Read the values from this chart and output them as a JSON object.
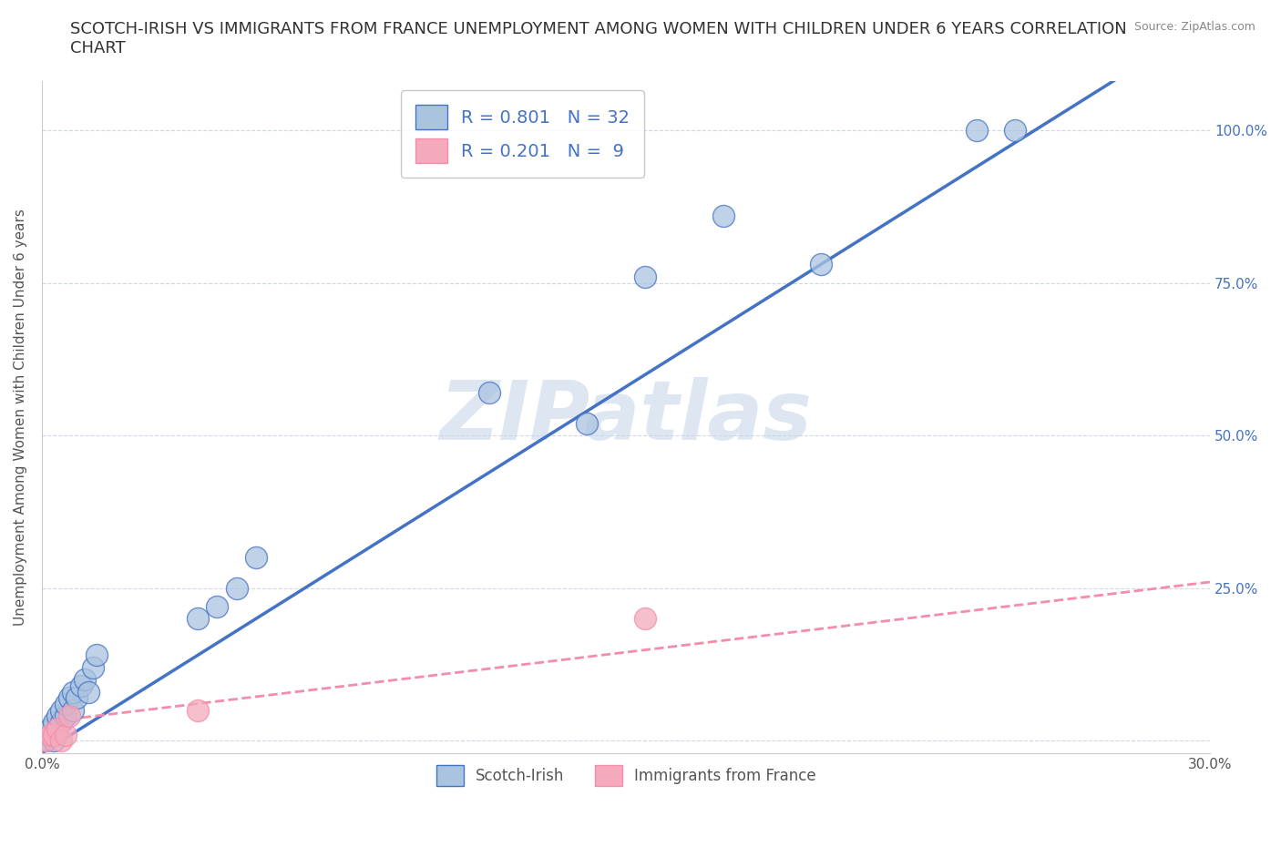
{
  "title": "SCOTCH-IRISH VS IMMIGRANTS FROM FRANCE UNEMPLOYMENT AMONG WOMEN WITH CHILDREN UNDER 6 YEARS CORRELATION\nCHART",
  "source": "Source: ZipAtlas.com",
  "ylabel": "Unemployment Among Women with Children Under 6 years",
  "xlim": [
    0.0,
    0.3
  ],
  "ylim": [
    -0.02,
    1.08
  ],
  "xticks": [
    0.0,
    0.05,
    0.1,
    0.15,
    0.2,
    0.25,
    0.3
  ],
  "xtick_labels": [
    "0.0%",
    "",
    "",
    "",
    "",
    "",
    "30.0%"
  ],
  "yticks": [
    0.0,
    0.25,
    0.5,
    0.75,
    1.0
  ],
  "ytick_labels": [
    "",
    "25.0%",
    "50.0%",
    "75.0%",
    "100.0%"
  ],
  "scotch_irish_x": [
    0.001,
    0.002,
    0.002,
    0.003,
    0.003,
    0.003,
    0.004,
    0.004,
    0.005,
    0.005,
    0.006,
    0.006,
    0.007,
    0.008,
    0.008,
    0.009,
    0.01,
    0.011,
    0.012,
    0.013,
    0.014,
    0.04,
    0.045,
    0.05,
    0.055,
    0.115,
    0.14,
    0.155,
    0.175,
    0.2,
    0.24,
    0.25
  ],
  "scotch_irish_y": [
    0.0,
    0.01,
    0.02,
    0.0,
    0.01,
    0.03,
    0.02,
    0.04,
    0.03,
    0.05,
    0.04,
    0.06,
    0.07,
    0.05,
    0.08,
    0.07,
    0.09,
    0.1,
    0.08,
    0.12,
    0.14,
    0.2,
    0.22,
    0.25,
    0.3,
    0.57,
    0.52,
    0.76,
    0.86,
    0.78,
    1.0,
    1.0
  ],
  "france_x": [
    0.001,
    0.002,
    0.003,
    0.004,
    0.005,
    0.006,
    0.007,
    0.04,
    0.155
  ],
  "france_y": [
    0.0,
    0.01,
    0.01,
    0.02,
    0.0,
    0.01,
    0.04,
    0.05,
    0.2
  ],
  "scotch_irish_color": "#aac4e0",
  "france_color": "#f4aabc",
  "scotch_irish_line_color": "#4472c4",
  "france_line_color": "#f48caa",
  "scotch_irish_R": 0.801,
  "scotch_irish_N": 32,
  "france_R": 0.201,
  "france_N": 9,
  "watermark": "ZIPatlas",
  "watermark_color": "#c8d8e8",
  "background_color": "#ffffff",
  "grid_color": "#d0d8e8",
  "title_fontsize": 13,
  "axis_label_fontsize": 11,
  "tick_fontsize": 11,
  "legend_label1": "Scotch-Irish",
  "legend_label2": "Immigrants from France"
}
